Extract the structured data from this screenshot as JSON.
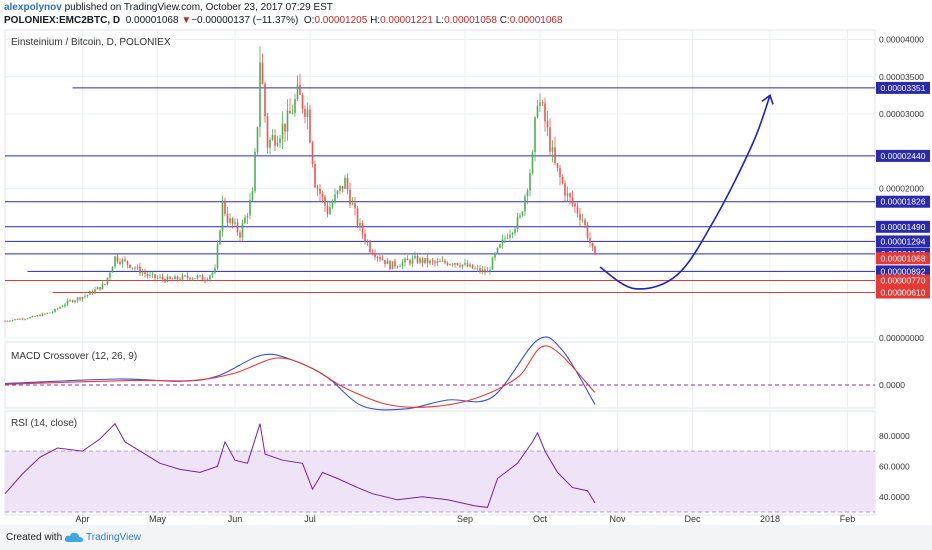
{
  "header": {
    "author": "alexpolynov",
    "published_text": " published on TradingView.com, October 23, 2017 07:29 EST",
    "symbol": "POLONIEX:EMC2BTC, D",
    "price": "0.00001068",
    "arrow": "▼",
    "change": "−0.00000137 (−11.37%)",
    "o_label": "O:",
    "o": "0.00001205",
    "h_label": "H:",
    "h": "0.00001221",
    "l_label": "L:",
    "l": "0.00001058",
    "c_label": "C:",
    "c": "0.00001068"
  },
  "footer": {
    "created_with": "Created with",
    "brand": "TradingView"
  },
  "colors": {
    "up": "#4caf50",
    "down": "#ef5350",
    "level": "#2a2aad",
    "support": "#e53935",
    "macd": "#3a4fd8",
    "signal": "#e53935",
    "rsi": "#7b1fa2",
    "rsi_band": "#efe3f7",
    "arrow": "#1e22b8",
    "grid": "#eceff2"
  },
  "chart_data": [
    {
      "type": "candlestick",
      "title": "Einsteinium / Bitcoin, D, POLONIEX",
      "ylim": [
        0,
        4.1e-05
      ],
      "y_ticks": [
        "0.00004000",
        "0.00003500",
        "0.00003000",
        "0.00002000",
        "0.00000000"
      ],
      "x_ticks": [
        "Apr",
        "May",
        "Jun",
        "Jul",
        "Sep",
        "Oct",
        "Nov",
        "Dec",
        "2018",
        "Feb"
      ],
      "close_path": [
        [
          "2017-03-01",
          2.3e-06
        ],
        [
          "2017-03-12",
          2.8e-06
        ],
        [
          "2017-03-20",
          3.5e-06
        ],
        [
          "2017-03-26",
          4.8e-06
        ],
        [
          "2017-04-03",
          5.8e-06
        ],
        [
          "2017-04-10",
          7.2e-06
        ],
        [
          "2017-04-14",
          1.08e-05
        ],
        [
          "2017-04-20",
          9.8e-06
        ],
        [
          "2017-04-28",
          8.2e-06
        ],
        [
          "2017-05-06",
          7.8e-06
        ],
        [
          "2017-05-14",
          8.2e-06
        ],
        [
          "2017-05-20",
          8e-06
        ],
        [
          "2017-05-24",
          9e-06
        ],
        [
          "2017-05-27",
          1.8e-05
        ],
        [
          "2017-05-29",
          1.6e-05
        ],
        [
          "2017-06-03",
          1.4e-05
        ],
        [
          "2017-06-08",
          1.9e-05
        ],
        [
          "2017-06-10",
          2.9e-05
        ],
        [
          "2017-06-11",
          3.75e-05
        ],
        [
          "2017-06-14",
          2.6e-05
        ],
        [
          "2017-06-22",
          2.9e-05
        ],
        [
          "2017-06-26",
          3.25e-05
        ],
        [
          "2017-06-30",
          3.05e-05
        ],
        [
          "2017-07-03",
          2.1e-05
        ],
        [
          "2017-07-08",
          1.7e-05
        ],
        [
          "2017-07-15",
          2.1e-05
        ],
        [
          "2017-07-20",
          1.55e-05
        ],
        [
          "2017-07-25",
          1.2e-05
        ],
        [
          "2017-08-02",
          9.7e-06
        ],
        [
          "2017-08-12",
          1.05e-05
        ],
        [
          "2017-08-20",
          1e-05
        ],
        [
          "2017-08-28",
          1.02e-05
        ],
        [
          "2017-09-05",
          9.2e-06
        ],
        [
          "2017-09-10",
          8.8e-06
        ],
        [
          "2017-09-13",
          1.1e-05
        ],
        [
          "2017-09-18",
          1.4e-05
        ],
        [
          "2017-09-23",
          1.6e-05
        ],
        [
          "2017-09-28",
          2.4e-05
        ],
        [
          "2017-09-30",
          3.25e-05
        ],
        [
          "2017-10-03",
          2.9e-05
        ],
        [
          "2017-10-07",
          2.3e-05
        ],
        [
          "2017-10-12",
          1.9e-05
        ],
        [
          "2017-10-18",
          1.6e-05
        ],
        [
          "2017-10-23",
          1.068e-05
        ]
      ],
      "levels": [
        {
          "label": "0.00003351",
          "value": 3.351e-05,
          "from": "2017-03-28",
          "kind": "resistance"
        },
        {
          "label": "0.00002440",
          "value": 2.44e-05,
          "from": "2017-03-01",
          "kind": "resistance"
        },
        {
          "label": "0.00001826",
          "value": 1.826e-05,
          "from": "2017-03-01",
          "kind": "resistance"
        },
        {
          "label": "0.00001490",
          "value": 1.49e-05,
          "from": "2017-03-01",
          "kind": "resistance"
        },
        {
          "label": "0.00001294",
          "value": 1.294e-05,
          "from": "2017-03-01",
          "kind": "resistance"
        },
        {
          "label": "0.00001127",
          "value": 1.127e-05,
          "from": "2017-03-01",
          "kind": "resistance"
        },
        {
          "label": "0.00001068",
          "value": 1.068e-05,
          "from": null,
          "kind": "current"
        },
        {
          "label": "0.00000892",
          "value": 8.92e-06,
          "from": "2017-03-10",
          "kind": "resistance"
        },
        {
          "label": "0.00000770",
          "value": 7.7e-06,
          "from": "2017-03-01",
          "kind": "support"
        },
        {
          "label": "0.00000610",
          "value": 6.1e-06,
          "from": "2017-03-20",
          "kind": "support"
        }
      ],
      "projection": [
        [
          "2017-10-25",
          9.5e-06
        ],
        [
          "2017-11-08",
          6.6e-06
        ],
        [
          "2017-11-25",
          8.5e-06
        ],
        [
          "2017-12-10",
          1.6e-05
        ],
        [
          "2017-12-25",
          2.6e-05
        ],
        [
          "2018-01-01",
          3.251e-05
        ]
      ]
    },
    {
      "type": "line",
      "title": "MACD Crossover (12, 26, 9)",
      "y_ticks": [
        "0.0000"
      ],
      "series": [
        {
          "key": "macd",
          "points": [
            [
              "2017-03-01",
              0.2
            ],
            [
              "2017-04-15",
              0.8
            ],
            [
              "2017-05-10",
              0.5
            ],
            [
              "2017-05-25",
              1.2
            ],
            [
              "2017-06-12",
              4.0
            ],
            [
              "2017-06-25",
              3.2
            ],
            [
              "2017-07-08",
              1.0
            ],
            [
              "2017-07-22",
              -2.8
            ],
            [
              "2017-08-08",
              -3.2
            ],
            [
              "2017-08-25",
              -2.0
            ],
            [
              "2017-09-12",
              -1.6
            ],
            [
              "2017-09-30",
              6.0
            ],
            [
              "2017-10-10",
              4.6
            ],
            [
              "2017-10-23",
              -2.6
            ]
          ]
        },
        {
          "key": "signal",
          "points": [
            [
              "2017-03-01",
              0.1
            ],
            [
              "2017-04-20",
              0.6
            ],
            [
              "2017-05-15",
              0.6
            ],
            [
              "2017-06-01",
              1.6
            ],
            [
              "2017-06-18",
              3.6
            ],
            [
              "2017-07-02",
              2.2
            ],
            [
              "2017-07-15",
              -0.4
            ],
            [
              "2017-08-01",
              -2.6
            ],
            [
              "2017-08-18",
              -2.9
            ],
            [
              "2017-09-05",
              -1.8
            ],
            [
              "2017-09-22",
              1.0
            ],
            [
              "2017-10-04",
              5.2
            ],
            [
              "2017-10-23",
              -1.0
            ]
          ]
        }
      ]
    },
    {
      "type": "line",
      "title": "RSI (14, close)",
      "ylim": [
        30,
        95
      ],
      "y_ticks": [
        "80.0000",
        "60.0000",
        "40.0000"
      ],
      "band": [
        30,
        70
      ],
      "series": [
        {
          "key": "rsi",
          "points": [
            [
              "2017-03-01",
              42
            ],
            [
              "2017-03-08",
              55
            ],
            [
              "2017-03-15",
              66
            ],
            [
              "2017-03-22",
              72
            ],
            [
              "2017-04-01",
              70
            ],
            [
              "2017-04-08",
              78
            ],
            [
              "2017-04-14",
              88
            ],
            [
              "2017-04-18",
              76
            ],
            [
              "2017-04-24",
              70
            ],
            [
              "2017-05-02",
              62
            ],
            [
              "2017-05-10",
              58
            ],
            [
              "2017-05-18",
              56
            ],
            [
              "2017-05-25",
              60
            ],
            [
              "2017-05-28",
              76
            ],
            [
              "2017-06-01",
              64
            ],
            [
              "2017-06-06",
              62
            ],
            [
              "2017-06-11",
              88
            ],
            [
              "2017-06-13",
              68
            ],
            [
              "2017-06-20",
              64
            ],
            [
              "2017-06-28",
              62
            ],
            [
              "2017-07-02",
              45
            ],
            [
              "2017-07-06",
              56
            ],
            [
              "2017-07-12",
              52
            ],
            [
              "2017-07-20",
              46
            ],
            [
              "2017-07-26",
              42
            ],
            [
              "2017-08-05",
              38
            ],
            [
              "2017-08-15",
              40
            ],
            [
              "2017-08-25",
              38
            ],
            [
              "2017-09-05",
              34
            ],
            [
              "2017-09-10",
              33
            ],
            [
              "2017-09-14",
              52
            ],
            [
              "2017-09-22",
              62
            ],
            [
              "2017-09-28",
              76
            ],
            [
              "2017-09-30",
              82
            ],
            [
              "2017-10-03",
              70
            ],
            [
              "2017-10-08",
              56
            ],
            [
              "2017-10-14",
              46
            ],
            [
              "2017-10-20",
              44
            ],
            [
              "2017-10-23",
              36
            ]
          ]
        }
      ]
    }
  ]
}
